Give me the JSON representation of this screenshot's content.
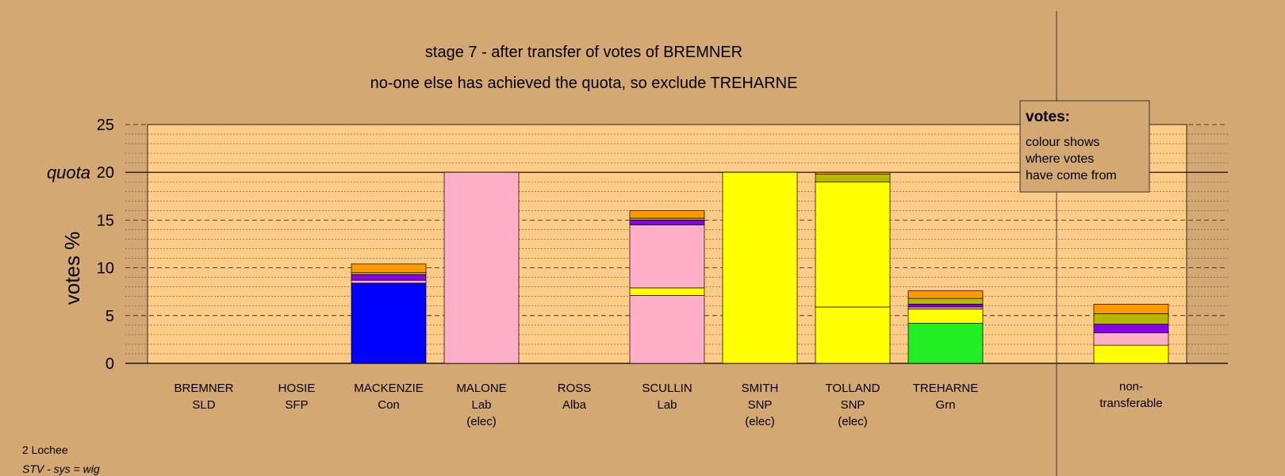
{
  "footer": {
    "area": "2 Lochee",
    "system": "STV - sys = wig"
  },
  "legend": {
    "title": "votes:",
    "lines": [
      "colour shows",
      "where votes",
      "have come from"
    ]
  },
  "colors": {
    "background": "#d4a872",
    "plot": "#ffcc88",
    "SNP": "#ffff00",
    "Lab": "#ffb0c8",
    "Con": "#0000ff",
    "Grn": "#22ee22",
    "SLD": "#ff9900",
    "SFP": "#8800ee",
    "Alba": "#b8b800"
  },
  "chart_data": {
    "type": "bar",
    "stacked": true,
    "title": "stage 7 - after transfer of votes of BREMNER",
    "subtitle": "no-one else has achieved the quota, so exclude TREHARNE",
    "xlabel": "",
    "ylabel": "votes %",
    "ylim": [
      0,
      25
    ],
    "yticks": [
      0,
      5,
      10,
      15,
      20,
      25
    ],
    "quota": 20,
    "quota_label": "quota",
    "grid": true,
    "legend_position": "top-right",
    "categories": [
      {
        "name": "BREMNER",
        "party": "SLD",
        "note": "",
        "segments": []
      },
      {
        "name": "HOSIE",
        "party": "SFP",
        "note": "",
        "segments": []
      },
      {
        "name": "MACKENZIE",
        "party": "Con",
        "note": "",
        "segments": [
          {
            "from": "Con",
            "value": 8.4
          },
          {
            "from": "Lab",
            "value": 0.3
          },
          {
            "from": "SFP",
            "value": 0.6
          },
          {
            "from": "Alba",
            "value": 0.2
          },
          {
            "from": "SLD",
            "value": 0.9
          }
        ]
      },
      {
        "name": "MALONE",
        "party": "Lab",
        "note": "(elec)",
        "segments": [
          {
            "from": "Lab",
            "value": 20.0
          }
        ]
      },
      {
        "name": "ROSS",
        "party": "Alba",
        "note": "",
        "segments": []
      },
      {
        "name": "SCULLIN",
        "party": "Lab",
        "note": "",
        "segments": [
          {
            "from": "Lab",
            "value": 7.1
          },
          {
            "from": "SNP",
            "value": 0.8
          },
          {
            "from": "Lab",
            "value": 6.6
          },
          {
            "from": "SFP",
            "value": 0.5
          },
          {
            "from": "Alba",
            "value": 0.2
          },
          {
            "from": "SLD",
            "value": 0.8
          }
        ]
      },
      {
        "name": "SMITH",
        "party": "SNP",
        "note": "(elec)",
        "segments": [
          {
            "from": "SNP",
            "value": 20.0
          }
        ]
      },
      {
        "name": "TOLLAND",
        "party": "SNP",
        "note": "(elec)",
        "segments": [
          {
            "from": "SNP",
            "value": 5.9
          },
          {
            "from": "SNP",
            "value": 13.1
          },
          {
            "from": "Alba",
            "value": 0.8
          },
          {
            "from": "SLD",
            "value": 0.2
          }
        ]
      },
      {
        "name": "TREHARNE",
        "party": "Grn",
        "note": "",
        "segments": [
          {
            "from": "Grn",
            "value": 4.2
          },
          {
            "from": "SNP",
            "value": 1.5
          },
          {
            "from": "Lab",
            "value": 0.2
          },
          {
            "from": "SFP",
            "value": 0.3
          },
          {
            "from": "Alba",
            "value": 0.6
          },
          {
            "from": "SLD",
            "value": 0.8
          }
        ]
      }
    ],
    "nontransferable": {
      "label_lines": [
        "non-",
        "transferable"
      ],
      "segments": [
        {
          "from": "SNP",
          "value": 1.9
        },
        {
          "from": "Lab",
          "value": 1.3
        },
        {
          "from": "SFP",
          "value": 0.9
        },
        {
          "from": "Alba",
          "value": 1.1
        },
        {
          "from": "SLD",
          "value": 1.0
        }
      ]
    }
  }
}
